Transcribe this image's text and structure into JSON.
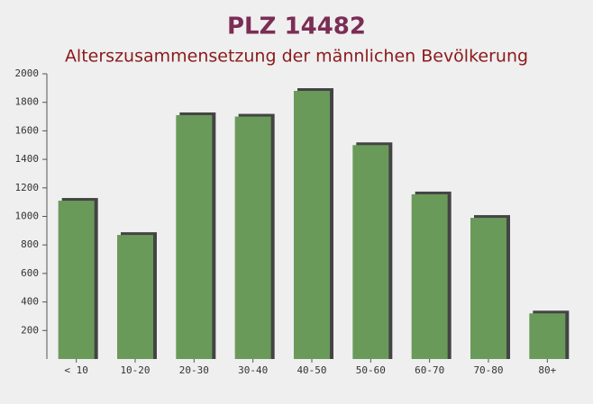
{
  "chart_data": {
    "type": "bar",
    "title": "PLZ 14482",
    "subtitle": "Alterszusammensetzung der männlichen Bevölkerung",
    "categories": [
      "< 10",
      "10-20",
      "20-30",
      "30-40",
      "40-50",
      "50-60",
      "60-70",
      "70-80",
      "80+"
    ],
    "values": [
      1110,
      870,
      1710,
      1700,
      1880,
      1500,
      1155,
      990,
      320
    ],
    "color": "#6a9a5a",
    "ylim": [
      0,
      2000
    ],
    "yticks": [
      200,
      400,
      600,
      800,
      1000,
      1200,
      1400,
      1600,
      1800,
      2000
    ],
    "grid": false
  }
}
